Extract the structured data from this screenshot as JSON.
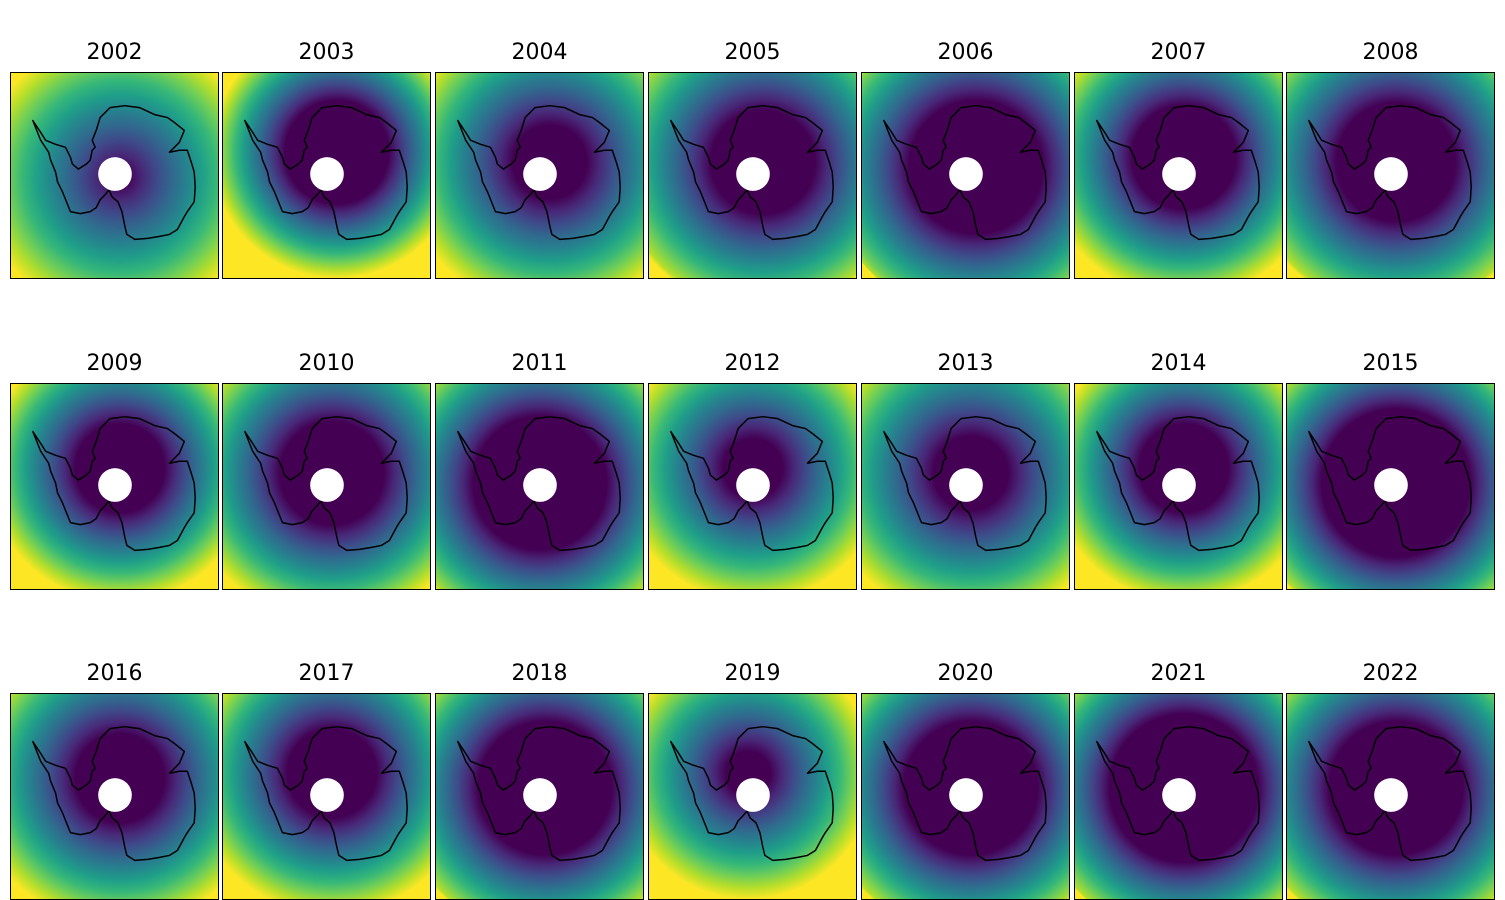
{
  "figure": {
    "panels": [
      {
        "title": "2002"
      },
      {
        "title": "2003"
      },
      {
        "title": "2004"
      },
      {
        "title": "2005"
      },
      {
        "title": "2006"
      },
      {
        "title": "2007"
      },
      {
        "title": "2008"
      },
      {
        "title": "2009"
      },
      {
        "title": "2010"
      },
      {
        "title": "2011"
      },
      {
        "title": "2012"
      },
      {
        "title": "2013"
      },
      {
        "title": "2014"
      },
      {
        "title": "2015"
      },
      {
        "title": "2016"
      },
      {
        "title": "2017"
      },
      {
        "title": "2018"
      },
      {
        "title": "2019"
      },
      {
        "title": "2020"
      },
      {
        "title": "2021"
      },
      {
        "title": "2022"
      }
    ],
    "colormap": "viridis",
    "colormap_colors": [
      "#440154",
      "#482878",
      "#3e4a89",
      "#31688e",
      "#26828e",
      "#1f9e89",
      "#35b779",
      "#6ece58",
      "#b5de2b",
      "#fde725"
    ],
    "coastline_color": "#000000",
    "pole_mask_color": "#ffffff"
  }
}
